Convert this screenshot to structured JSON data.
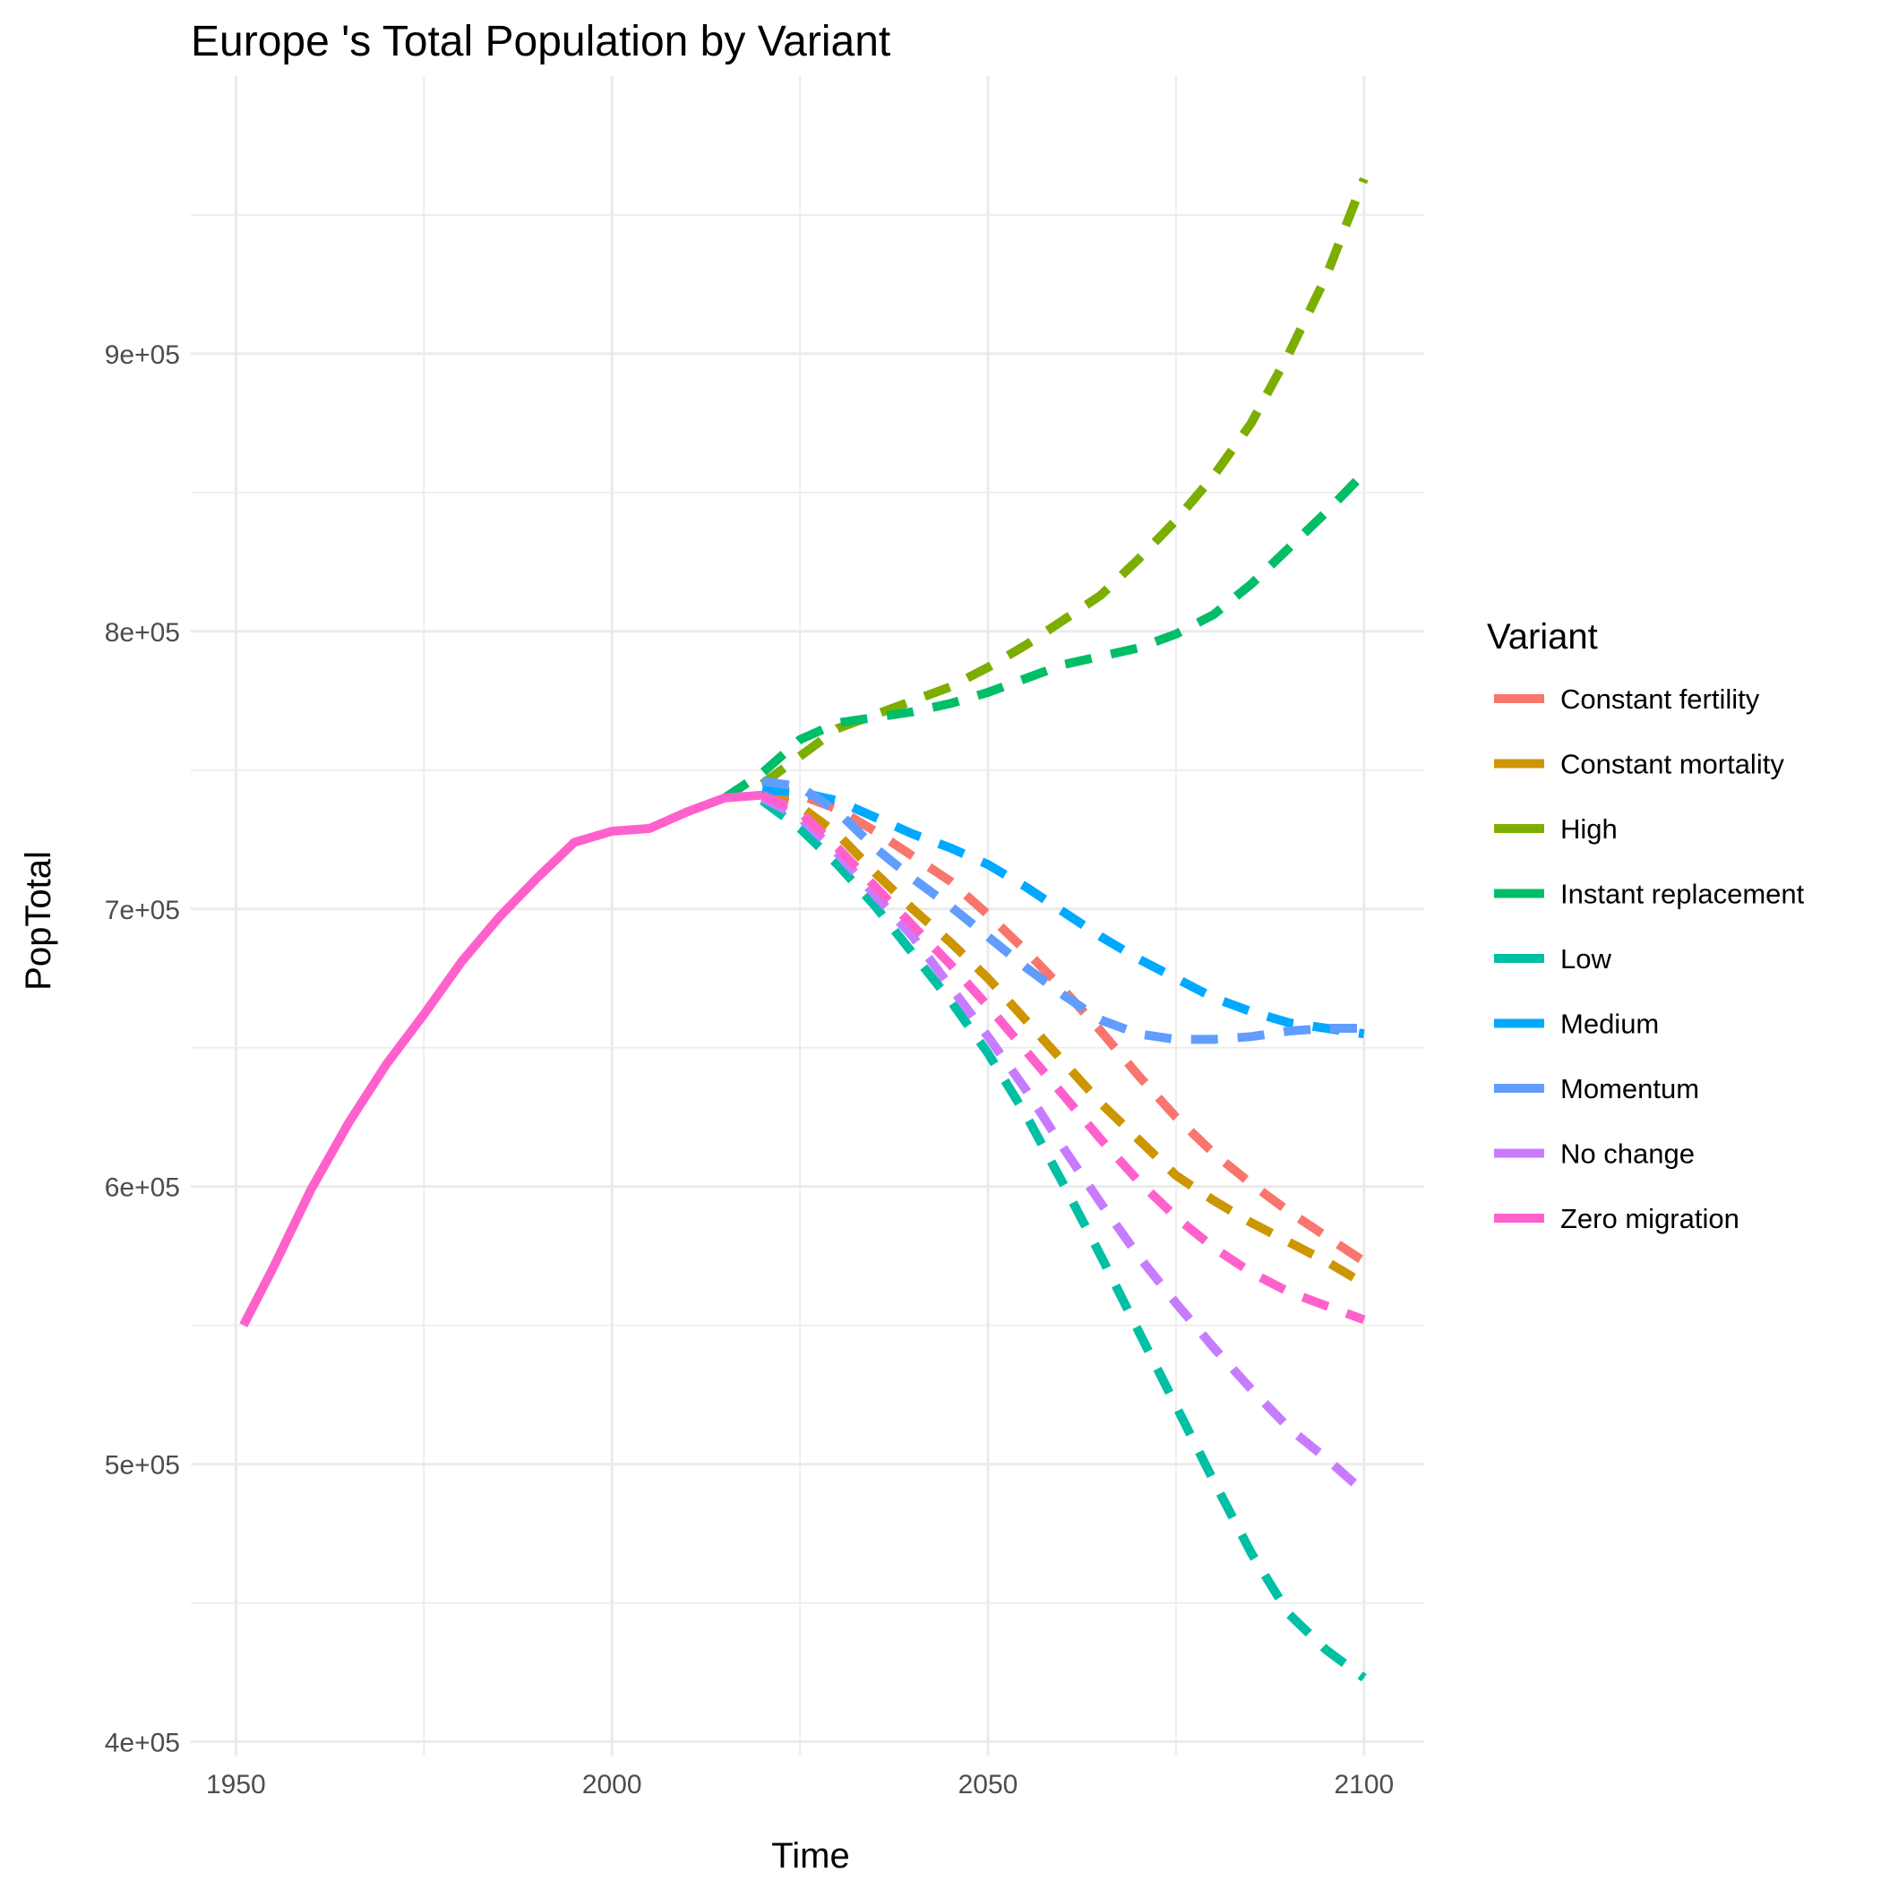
{
  "chart_data": {
    "type": "line",
    "title": "Europe 's Total Population by Variant",
    "xlabel": "Time",
    "ylabel": "PopTotal",
    "xlim": [
      1944,
      2108
    ],
    "ylim": [
      395000,
      1000000
    ],
    "x_ticks": [
      1950,
      2000,
      2050,
      2100
    ],
    "x_tick_labels": [
      "1950",
      "2000",
      "2050",
      "2100"
    ],
    "y_ticks": [
      400000,
      500000,
      600000,
      700000,
      800000,
      900000
    ],
    "y_tick_labels": [
      "4e+05",
      "5e+05",
      "6e+05",
      "7e+05",
      "8e+05",
      "9e+05"
    ],
    "grid": true,
    "legend_title": "Variant",
    "legend_position": "right",
    "series": [
      {
        "name": "Constant fertility",
        "color": "#F8766D",
        "style": "dashed",
        "x": [
          2020,
          2025,
          2030,
          2035,
          2040,
          2045,
          2050,
          2055,
          2060,
          2065,
          2070,
          2075,
          2080,
          2085,
          2090,
          2095,
          2100
        ],
        "y": [
          742000,
          741000,
          736000,
          728000,
          719000,
          710000,
          698000,
          685000,
          671000,
          656000,
          640000,
          625000,
          612000,
          601000,
          591000,
          582000,
          573000
        ]
      },
      {
        "name": "Constant mortality",
        "color": "#CD9600",
        "style": "dashed",
        "x": [
          2020,
          2025,
          2030,
          2035,
          2040,
          2045,
          2050,
          2055,
          2060,
          2065,
          2070,
          2075,
          2080,
          2085,
          2090,
          2095,
          2100
        ],
        "y": [
          741000,
          737000,
          727000,
          713000,
          700000,
          688000,
          675000,
          660000,
          645000,
          630000,
          617000,
          604000,
          595000,
          587000,
          580000,
          573000,
          565000
        ]
      },
      {
        "name": "High",
        "color": "#7CAE00",
        "style": "dashed",
        "x": [
          2020,
          2025,
          2030,
          2035,
          2040,
          2045,
          2050,
          2055,
          2060,
          2065,
          2070,
          2075,
          2080,
          2085,
          2090,
          2095,
          2100
        ],
        "y": [
          745000,
          755000,
          765000,
          770000,
          775000,
          780000,
          787000,
          795000,
          804000,
          813000,
          826000,
          840000,
          856000,
          875000,
          900000,
          928000,
          963000
        ]
      },
      {
        "name": "Instant replacement",
        "color": "#00BE67",
        "style": "dashed",
        "x": [
          2015,
          2020,
          2025,
          2030,
          2035,
          2040,
          2045,
          2050,
          2055,
          2060,
          2065,
          2070,
          2075,
          2080,
          2085,
          2090,
          2095,
          2100
        ],
        "y": [
          740000,
          749000,
          761000,
          767000,
          769000,
          771000,
          774000,
          778000,
          783000,
          788000,
          791000,
          794000,
          799000,
          806000,
          817000,
          830000,
          843000,
          857000
        ]
      },
      {
        "name": "Low",
        "color": "#00BFA4",
        "style": "dashed",
        "x": [
          2020,
          2025,
          2030,
          2035,
          2040,
          2045,
          2050,
          2055,
          2060,
          2065,
          2070,
          2075,
          2080,
          2085,
          2090,
          2095,
          2100
        ],
        "y": [
          739000,
          729000,
          716000,
          701000,
          684000,
          667000,
          648000,
          626000,
          601000,
          575000,
          548000,
          521000,
          494000,
          468000,
          446000,
          433000,
          423000
        ]
      },
      {
        "name": "Medium",
        "color": "#00A9FF",
        "style": "dashed",
        "x": [
          2020,
          2025,
          2030,
          2035,
          2040,
          2045,
          2050,
          2055,
          2060,
          2065,
          2070,
          2075,
          2080,
          2085,
          2090,
          2095,
          2100
        ],
        "y": [
          743000,
          742000,
          739000,
          733000,
          727000,
          722000,
          716000,
          708000,
          699000,
          690000,
          682000,
          675000,
          668000,
          663000,
          659000,
          657000,
          655000
        ]
      },
      {
        "name": "Momentum",
        "color": "#619CFF",
        "style": "dashed",
        "x": [
          2020,
          2025,
          2030,
          2035,
          2040,
          2045,
          2050,
          2055,
          2060,
          2065,
          2070,
          2075,
          2080,
          2085,
          2090,
          2095,
          2100
        ],
        "y": [
          746000,
          744000,
          735000,
          722000,
          711000,
          701000,
          690000,
          679000,
          669000,
          660000,
          655000,
          653000,
          653000,
          654000,
          656000,
          657000,
          657000
        ]
      },
      {
        "name": "No change",
        "color": "#C77CFF",
        "style": "dashed",
        "x": [
          2020,
          2025,
          2030,
          2035,
          2040,
          2045,
          2050,
          2055,
          2060,
          2065,
          2070,
          2075,
          2080,
          2085,
          2090,
          2095,
          2100
        ],
        "y": [
          740000,
          733000,
          720000,
          705000,
          690000,
          672000,
          654000,
          635000,
          614000,
          594000,
          575000,
          558000,
          542000,
          527000,
          513000,
          502000,
          490000
        ]
      },
      {
        "name": "Zero migration",
        "color": "#FF61CC",
        "style": "solid-then-dashed",
        "dash_from": 2020,
        "x": [
          1951,
          1955,
          1960,
          1965,
          1970,
          1975,
          1980,
          1985,
          1990,
          1995,
          2000,
          2005,
          2010,
          2015,
          2020,
          2025,
          2030,
          2035,
          2040,
          2045,
          2050,
          2055,
          2060,
          2065,
          2070,
          2075,
          2080,
          2085,
          2090,
          2095,
          2100
        ],
        "y": [
          550000,
          571000,
          599000,
          623000,
          644000,
          662000,
          681000,
          697000,
          711000,
          724000,
          728000,
          729000,
          735000,
          740000,
          741000,
          735000,
          722000,
          708000,
          694000,
          680000,
          665000,
          649000,
          633000,
          617000,
          602000,
          589000,
          578000,
          569000,
          562000,
          557000,
          552000
        ]
      }
    ]
  }
}
